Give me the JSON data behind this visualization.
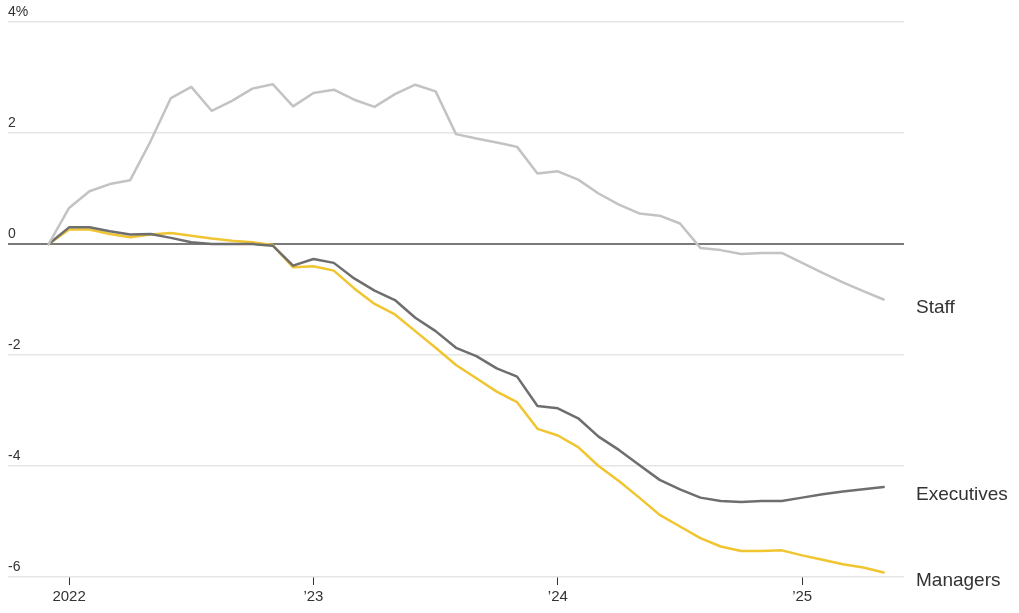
{
  "chart_data": {
    "type": "line",
    "x": [
      "2021-12",
      "2022-01",
      "2022-02",
      "2022-03",
      "2022-04",
      "2022-05",
      "2022-06",
      "2022-07",
      "2022-08",
      "2022-09",
      "2022-10",
      "2022-11",
      "2022-12",
      "2023-01",
      "2023-02",
      "2023-03",
      "2023-04",
      "2023-05",
      "2023-06",
      "2023-07",
      "2023-08",
      "2023-09",
      "2023-10",
      "2023-11",
      "2023-12",
      "2024-01",
      "2024-02",
      "2024-03",
      "2024-04",
      "2024-05",
      "2024-06",
      "2024-07",
      "2024-08",
      "2024-09",
      "2024-10",
      "2024-11",
      "2024-12",
      "2025-01",
      "2025-02",
      "2025-03",
      "2025-04",
      "2025-05"
    ],
    "series": [
      {
        "name": "Staff",
        "color": "#c3c3c3",
        "values": [
          0,
          0.65,
          0.95,
          1.08,
          1.15,
          1.85,
          2.63,
          2.83,
          2.4,
          2.58,
          2.8,
          2.88,
          2.48,
          2.72,
          2.78,
          2.6,
          2.47,
          2.7,
          2.87,
          2.75,
          1.98,
          1.9,
          1.83,
          1.75,
          1.27,
          1.31,
          1.16,
          0.91,
          0.71,
          0.55,
          0.51,
          0.37,
          -0.07,
          -0.11,
          -0.18,
          -0.16,
          -0.16,
          -0.34,
          -0.52,
          -0.69,
          -0.85,
          -1.0
        ]
      },
      {
        "name": "Executives",
        "color": "#6e6e6e",
        "values": [
          0,
          0.3,
          0.3,
          0.23,
          0.17,
          0.18,
          0.11,
          0.03,
          0,
          0,
          0,
          -0.03,
          -0.39,
          -0.27,
          -0.34,
          -0.62,
          -0.84,
          -1.01,
          -1.33,
          -1.57,
          -1.87,
          -2.02,
          -2.24,
          -2.39,
          -2.92,
          -2.96,
          -3.14,
          -3.47,
          -3.71,
          -3.98,
          -4.25,
          -4.42,
          -4.57,
          -4.63,
          -4.65,
          -4.63,
          -4.63,
          -4.57,
          -4.51,
          -4.46,
          -4.42,
          -4.38
        ]
      },
      {
        "name": "Managers",
        "color": "#f0c530",
        "values": [
          0,
          0.26,
          0.26,
          0.18,
          0.12,
          0.17,
          0.2,
          0.15,
          0.1,
          0.06,
          0.03,
          -0.02,
          -0.42,
          -0.4,
          -0.48,
          -0.8,
          -1.08,
          -1.27,
          -1.57,
          -1.87,
          -2.18,
          -2.42,
          -2.66,
          -2.85,
          -3.33,
          -3.45,
          -3.66,
          -4.0,
          -4.27,
          -4.57,
          -4.88,
          -5.09,
          -5.3,
          -5.45,
          -5.53,
          -5.53,
          -5.52,
          -5.61,
          -5.69,
          -5.77,
          -5.83,
          -5.92
        ]
      }
    ],
    "xlim": [
      "2021-10",
      "2025-06"
    ],
    "xticks": [
      {
        "value": "2022-01",
        "label": "2022"
      },
      {
        "value": "2023-01",
        "label": "’23"
      },
      {
        "value": "2024-01",
        "label": "’24"
      },
      {
        "value": "2025-01",
        "label": "’25"
      }
    ],
    "ylim": [
      -6,
      4
    ],
    "yticks": [
      -6,
      -4,
      -2,
      0,
      2,
      {
        "value": 4,
        "label": "4%"
      }
    ],
    "ref_lines": [
      {
        "axis": "y",
        "value": 0,
        "color": "#555555"
      }
    ],
    "grid": "y",
    "legend": false,
    "marker": "none",
    "line_style": "solid"
  }
}
